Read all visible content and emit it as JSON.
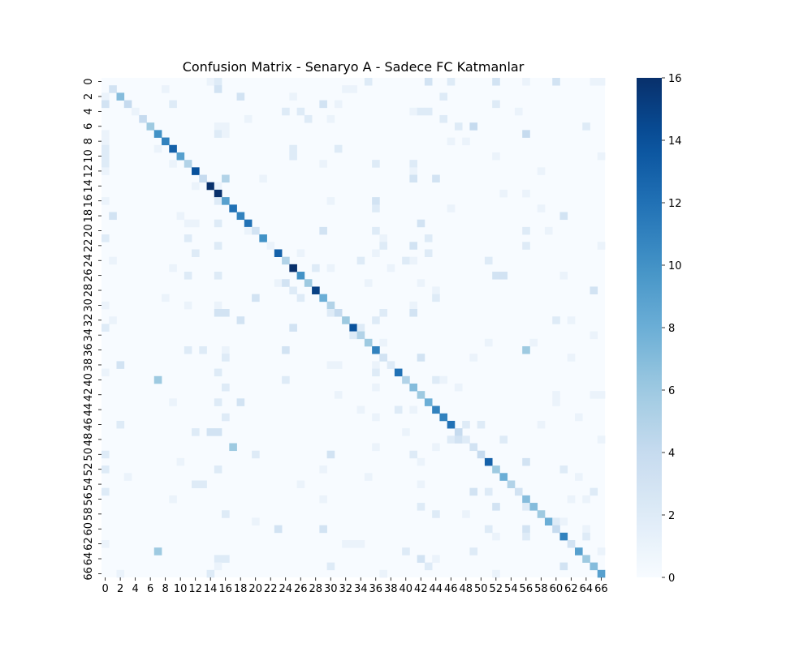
{
  "chart_data": {
    "type": "heatmap",
    "title": "Confusion Matrix - Senaryo A - Sadece FC Katmanlar",
    "xlabel": "",
    "ylabel": "",
    "n_classes": 67,
    "x_tick_labels": [
      "0",
      "2",
      "4",
      "6",
      "8",
      "10",
      "12",
      "14",
      "16",
      "18",
      "20",
      "22",
      "24",
      "26",
      "28",
      "30",
      "32",
      "34",
      "36",
      "38",
      "40",
      "42",
      "44",
      "46",
      "48",
      "50",
      "52",
      "54",
      "56",
      "58",
      "60",
      "62",
      "64",
      "66"
    ],
    "y_tick_labels": [
      "0",
      "2",
      "4",
      "6",
      "8",
      "10",
      "12",
      "14",
      "16",
      "18",
      "20",
      "22",
      "24",
      "26",
      "28",
      "30",
      "32",
      "34",
      "36",
      "38",
      "40",
      "42",
      "44",
      "46",
      "48",
      "50",
      "52",
      "54",
      "56",
      "58",
      "60",
      "62",
      "64",
      "66"
    ],
    "diagonal": [
      0,
      3,
      7,
      4,
      1,
      4,
      6,
      10,
      11,
      13,
      9,
      5,
      14,
      4,
      16,
      16,
      9,
      12,
      11,
      12,
      3,
      10,
      1,
      13,
      5,
      16,
      10,
      6,
      15,
      8,
      5,
      4,
      6,
      14,
      5,
      6,
      11,
      3,
      2,
      12,
      5,
      7,
      6,
      8,
      11,
      11,
      12,
      4,
      2,
      3,
      4,
      13,
      6,
      8,
      5,
      3,
      7,
      7,
      6,
      8,
      4,
      11,
      3,
      9,
      6,
      7,
      9
    ],
    "off_diagonal": [
      [
        0,
        43,
        3
      ],
      [
        0,
        46,
        2
      ],
      [
        0,
        52,
        3
      ],
      [
        0,
        56,
        1
      ],
      [
        0,
        60,
        3
      ],
      [
        0,
        65,
        1
      ],
      [
        0,
        66,
        1
      ],
      [
        0,
        14,
        1
      ],
      [
        0,
        15,
        2
      ],
      [
        0,
        35,
        2
      ],
      [
        1,
        1,
        3
      ],
      [
        1,
        15,
        3
      ],
      [
        1,
        32,
        1
      ],
      [
        1,
        33,
        1
      ],
      [
        1,
        8,
        1
      ],
      [
        2,
        0,
        1
      ],
      [
        2,
        18,
        3
      ],
      [
        2,
        45,
        2
      ],
      [
        2,
        25,
        1
      ],
      [
        3,
        0,
        3
      ],
      [
        3,
        9,
        2
      ],
      [
        3,
        29,
        3
      ],
      [
        3,
        52,
        2
      ],
      [
        3,
        31,
        1
      ],
      [
        4,
        24,
        2
      ],
      [
        4,
        26,
        2
      ],
      [
        4,
        42,
        2
      ],
      [
        4,
        43,
        2
      ],
      [
        4,
        41,
        1
      ],
      [
        4,
        55,
        1
      ],
      [
        5,
        27,
        2
      ],
      [
        5,
        45,
        2
      ],
      [
        5,
        19,
        1
      ],
      [
        5,
        30,
        1
      ],
      [
        6,
        49,
        4
      ],
      [
        6,
        64,
        2
      ],
      [
        6,
        47,
        2
      ],
      [
        6,
        15,
        1
      ],
      [
        6,
        16,
        1
      ],
      [
        7,
        56,
        4
      ],
      [
        7,
        15,
        2
      ],
      [
        7,
        16,
        1
      ],
      [
        7,
        0,
        1
      ],
      [
        8,
        46,
        1
      ],
      [
        8,
        48,
        1
      ],
      [
        8,
        0,
        1
      ],
      [
        9,
        0,
        2
      ],
      [
        9,
        25,
        2
      ],
      [
        9,
        7,
        1
      ],
      [
        9,
        31,
        2
      ],
      [
        10,
        0,
        2
      ],
      [
        10,
        25,
        2
      ],
      [
        10,
        66,
        1
      ],
      [
        10,
        52,
        1
      ],
      [
        11,
        0,
        2
      ],
      [
        11,
        41,
        2
      ],
      [
        11,
        36,
        2
      ],
      [
        11,
        9,
        1
      ],
      [
        11,
        29,
        1
      ],
      [
        12,
        0,
        1
      ],
      [
        12,
        41,
        1
      ],
      [
        12,
        58,
        1
      ],
      [
        13,
        16,
        5
      ],
      [
        13,
        41,
        3
      ],
      [
        13,
        44,
        3
      ],
      [
        13,
        21,
        1
      ],
      [
        14,
        12,
        1
      ],
      [
        14,
        15,
        1
      ],
      [
        15,
        15,
        1
      ],
      [
        15,
        53,
        1
      ],
      [
        15,
        56,
        1
      ],
      [
        16,
        0,
        1
      ],
      [
        16,
        36,
        3
      ],
      [
        16,
        30,
        1
      ],
      [
        16,
        15,
        2
      ],
      [
        16,
        16,
        2
      ],
      [
        17,
        36,
        2
      ],
      [
        17,
        58,
        1
      ],
      [
        17,
        46,
        1
      ],
      [
        18,
        1,
        3
      ],
      [
        18,
        61,
        3
      ],
      [
        18,
        10,
        1
      ],
      [
        19,
        42,
        3
      ],
      [
        19,
        11,
        1
      ],
      [
        19,
        12,
        1
      ],
      [
        19,
        15,
        2
      ],
      [
        20,
        29,
        3
      ],
      [
        20,
        36,
        2
      ],
      [
        20,
        56,
        2
      ],
      [
        20,
        59,
        1
      ],
      [
        20,
        19,
        1
      ],
      [
        21,
        0,
        2
      ],
      [
        21,
        11,
        2
      ],
      [
        21,
        43,
        2
      ],
      [
        21,
        37,
        1
      ],
      [
        22,
        41,
        3
      ],
      [
        22,
        15,
        2
      ],
      [
        22,
        37,
        2
      ],
      [
        22,
        56,
        2
      ],
      [
        22,
        66,
        1
      ],
      [
        23,
        12,
        2
      ],
      [
        23,
        43,
        2
      ],
      [
        23,
        36,
        1
      ],
      [
        23,
        26,
        1
      ],
      [
        24,
        51,
        2
      ],
      [
        24,
        41,
        1
      ],
      [
        24,
        34,
        2
      ],
      [
        24,
        40,
        2
      ],
      [
        24,
        1,
        1
      ],
      [
        25,
        30,
        1
      ],
      [
        25,
        28,
        2
      ],
      [
        25,
        9,
        1
      ],
      [
        25,
        38,
        1
      ],
      [
        26,
        11,
        2
      ],
      [
        26,
        15,
        2
      ],
      [
        26,
        52,
        3
      ],
      [
        26,
        53,
        3
      ],
      [
        26,
        61,
        1
      ],
      [
        27,
        24,
        3
      ],
      [
        27,
        23,
        1
      ],
      [
        27,
        42,
        1
      ],
      [
        27,
        35,
        1
      ],
      [
        28,
        65,
        3
      ],
      [
        28,
        25,
        2
      ],
      [
        28,
        44,
        1
      ],
      [
        29,
        20,
        3
      ],
      [
        29,
        26,
        2
      ],
      [
        29,
        44,
        2
      ],
      [
        29,
        8,
        1
      ],
      [
        30,
        0,
        1
      ],
      [
        30,
        11,
        1
      ],
      [
        30,
        15,
        1
      ],
      [
        30,
        41,
        1
      ],
      [
        31,
        15,
        3
      ],
      [
        31,
        16,
        3
      ],
      [
        31,
        30,
        2
      ],
      [
        31,
        41,
        3
      ],
      [
        31,
        37,
        2
      ],
      [
        32,
        18,
        3
      ],
      [
        32,
        1,
        1
      ],
      [
        32,
        36,
        2
      ],
      [
        32,
        60,
        2
      ],
      [
        32,
        62,
        1
      ],
      [
        33,
        25,
        3
      ],
      [
        33,
        34,
        2
      ],
      [
        33,
        0,
        2
      ],
      [
        34,
        34,
        3
      ],
      [
        34,
        33,
        2
      ],
      [
        34,
        65,
        1
      ],
      [
        35,
        57,
        1
      ],
      [
        35,
        51,
        1
      ],
      [
        35,
        37,
        1
      ],
      [
        36,
        56,
        6
      ],
      [
        36,
        11,
        2
      ],
      [
        36,
        13,
        2
      ],
      [
        36,
        24,
        3
      ],
      [
        36,
        16,
        1
      ],
      [
        37,
        42,
        3
      ],
      [
        37,
        16,
        2
      ],
      [
        37,
        49,
        1
      ],
      [
        37,
        62,
        1
      ],
      [
        38,
        2,
        3
      ],
      [
        38,
        36,
        1
      ],
      [
        38,
        31,
        1
      ],
      [
        38,
        30,
        1
      ],
      [
        39,
        15,
        2
      ],
      [
        39,
        36,
        2
      ],
      [
        39,
        0,
        1
      ],
      [
        40,
        7,
        6
      ],
      [
        40,
        24,
        2
      ],
      [
        40,
        44,
        2
      ],
      [
        40,
        45,
        1
      ],
      [
        41,
        16,
        2
      ],
      [
        41,
        36,
        1
      ],
      [
        41,
        47,
        1
      ],
      [
        42,
        31,
        1
      ],
      [
        42,
        60,
        1
      ],
      [
        42,
        65,
        1
      ],
      [
        42,
        66,
        1
      ],
      [
        43,
        9,
        1
      ],
      [
        43,
        18,
        3
      ],
      [
        43,
        15,
        2
      ],
      [
        43,
        60,
        1
      ],
      [
        44,
        39,
        2
      ],
      [
        44,
        41,
        1
      ],
      [
        44,
        44,
        1
      ],
      [
        44,
        34,
        1
      ],
      [
        45,
        16,
        2
      ],
      [
        45,
        36,
        1
      ],
      [
        45,
        63,
        1
      ],
      [
        46,
        2,
        2
      ],
      [
        46,
        48,
        2
      ],
      [
        46,
        50,
        2
      ],
      [
        46,
        58,
        1
      ],
      [
        47,
        12,
        2
      ],
      [
        47,
        14,
        3
      ],
      [
        47,
        15,
        3
      ],
      [
        47,
        40,
        1
      ],
      [
        48,
        46,
        2
      ],
      [
        48,
        47,
        3
      ],
      [
        48,
        53,
        2
      ],
      [
        48,
        66,
        1
      ],
      [
        49,
        17,
        6
      ],
      [
        49,
        44,
        1
      ],
      [
        49,
        36,
        1
      ],
      [
        50,
        0,
        2
      ],
      [
        50,
        20,
        2
      ],
      [
        50,
        30,
        3
      ],
      [
        50,
        41,
        2
      ],
      [
        51,
        56,
        3
      ],
      [
        51,
        42,
        1
      ],
      [
        51,
        10,
        1
      ],
      [
        52,
        15,
        2
      ],
      [
        52,
        0,
        2
      ],
      [
        52,
        61,
        2
      ],
      [
        52,
        29,
        1
      ],
      [
        53,
        3,
        1
      ],
      [
        53,
        35,
        1
      ],
      [
        53,
        63,
        1
      ],
      [
        54,
        12,
        2
      ],
      [
        54,
        13,
        2
      ],
      [
        54,
        26,
        1
      ],
      [
        54,
        42,
        1
      ],
      [
        55,
        0,
        2
      ],
      [
        55,
        49,
        3
      ],
      [
        55,
        51,
        2
      ],
      [
        55,
        65,
        2
      ],
      [
        56,
        9,
        1
      ],
      [
        56,
        29,
        1
      ],
      [
        56,
        62,
        1
      ],
      [
        56,
        64,
        1
      ],
      [
        57,
        52,
        3
      ],
      [
        57,
        42,
        2
      ],
      [
        57,
        56,
        2
      ],
      [
        58,
        16,
        2
      ],
      [
        58,
        44,
        2
      ],
      [
        58,
        48,
        1
      ],
      [
        59,
        20,
        1
      ],
      [
        59,
        60,
        2
      ],
      [
        59,
        61,
        1
      ],
      [
        60,
        23,
        3
      ],
      [
        60,
        29,
        3
      ],
      [
        60,
        51,
        2
      ],
      [
        60,
        56,
        3
      ],
      [
        60,
        64,
        1
      ],
      [
        61,
        56,
        2
      ],
      [
        61,
        52,
        1
      ],
      [
        61,
        64,
        2
      ],
      [
        62,
        0,
        1
      ],
      [
        62,
        32,
        1
      ],
      [
        62,
        33,
        1
      ],
      [
        62,
        34,
        1
      ],
      [
        63,
        7,
        6
      ],
      [
        63,
        40,
        2
      ],
      [
        63,
        49,
        2
      ],
      [
        63,
        66,
        1
      ],
      [
        64,
        15,
        2
      ],
      [
        64,
        16,
        2
      ],
      [
        64,
        42,
        3
      ],
      [
        64,
        44,
        1
      ],
      [
        65,
        43,
        2
      ],
      [
        65,
        61,
        3
      ],
      [
        65,
        30,
        2
      ],
      [
        65,
        15,
        1
      ],
      [
        66,
        14,
        2
      ],
      [
        66,
        2,
        1
      ],
      [
        66,
        37,
        1
      ],
      [
        66,
        52,
        1
      ]
    ],
    "colorbar": {
      "min": 0,
      "max": 16,
      "tick_labels": [
        "0",
        "2",
        "4",
        "6",
        "8",
        "10",
        "12",
        "14",
        "16"
      ],
      "colormap": "Blues",
      "color_low": "#f7fbff",
      "color_high": "#08306b"
    },
    "legend": "none",
    "grid": false
  }
}
